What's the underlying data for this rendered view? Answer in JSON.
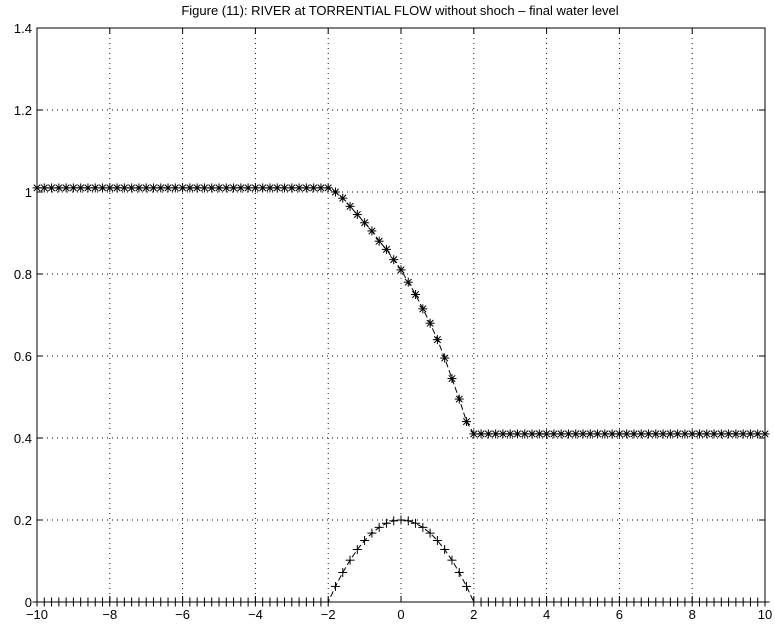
{
  "chart_data": {
    "type": "line",
    "title": "Figure (11): RIVER at TORRENTIAL FLOW without shoch – final water level",
    "xlabel": "",
    "ylabel": "",
    "xlim": [
      -10,
      10
    ],
    "ylim": [
      0,
      1.4
    ],
    "xticks": [
      -10,
      -8,
      -6,
      -4,
      -2,
      0,
      2,
      4,
      6,
      8,
      10
    ],
    "xtick_labels": [
      "−10",
      "−8",
      "−6",
      "−4",
      "−2",
      "0",
      "2",
      "4",
      "6",
      "8",
      "10"
    ],
    "yticks": [
      0,
      0.2,
      0.4,
      0.6,
      0.8,
      1,
      1.2,
      1.4
    ],
    "ytick_labels": [
      "0",
      "0.2",
      "0.4",
      "0.6",
      "0.8",
      "1",
      "1.2",
      "1.4"
    ],
    "grid": true,
    "series": [
      {
        "marker": "*",
        "line": "dashed",
        "x": [
          -2,
          -1.8,
          -1.6,
          -1.4,
          -1.2,
          -1.0,
          -0.8,
          -0.6,
          -0.4,
          -0.2,
          0.0,
          0.2,
          0.4,
          0.6,
          0.8,
          1.0,
          1.2,
          1.4,
          1.6,
          1.8,
          2.0
        ],
        "y": [
          1.01,
          1.0,
          0.985,
          0.965,
          0.945,
          0.925,
          0.905,
          0.88,
          0.86,
          0.835,
          0.81,
          0.78,
          0.75,
          0.715,
          0.68,
          0.64,
          0.595,
          0.545,
          0.495,
          0.44,
          0.41
        ],
        "left_level": 1.01,
        "right_level": 0.41
      },
      {
        "marker": "+",
        "line": "dashed",
        "x": [
          -2,
          -1.8,
          -1.6,
          -1.4,
          -1.2,
          -1.0,
          -0.8,
          -0.6,
          -0.4,
          -0.2,
          0.0,
          0.2,
          0.4,
          0.6,
          0.8,
          1.0,
          1.2,
          1.4,
          1.6,
          1.8,
          2.0
        ],
        "y": [
          0.0,
          0.038,
          0.072,
          0.102,
          0.128,
          0.15,
          0.168,
          0.182,
          0.192,
          0.198,
          0.2,
          0.198,
          0.192,
          0.182,
          0.168,
          0.15,
          0.128,
          0.102,
          0.072,
          0.038,
          0.0
        ],
        "base_level": 0.0
      }
    ],
    "marker_spacing": 0.2
  }
}
